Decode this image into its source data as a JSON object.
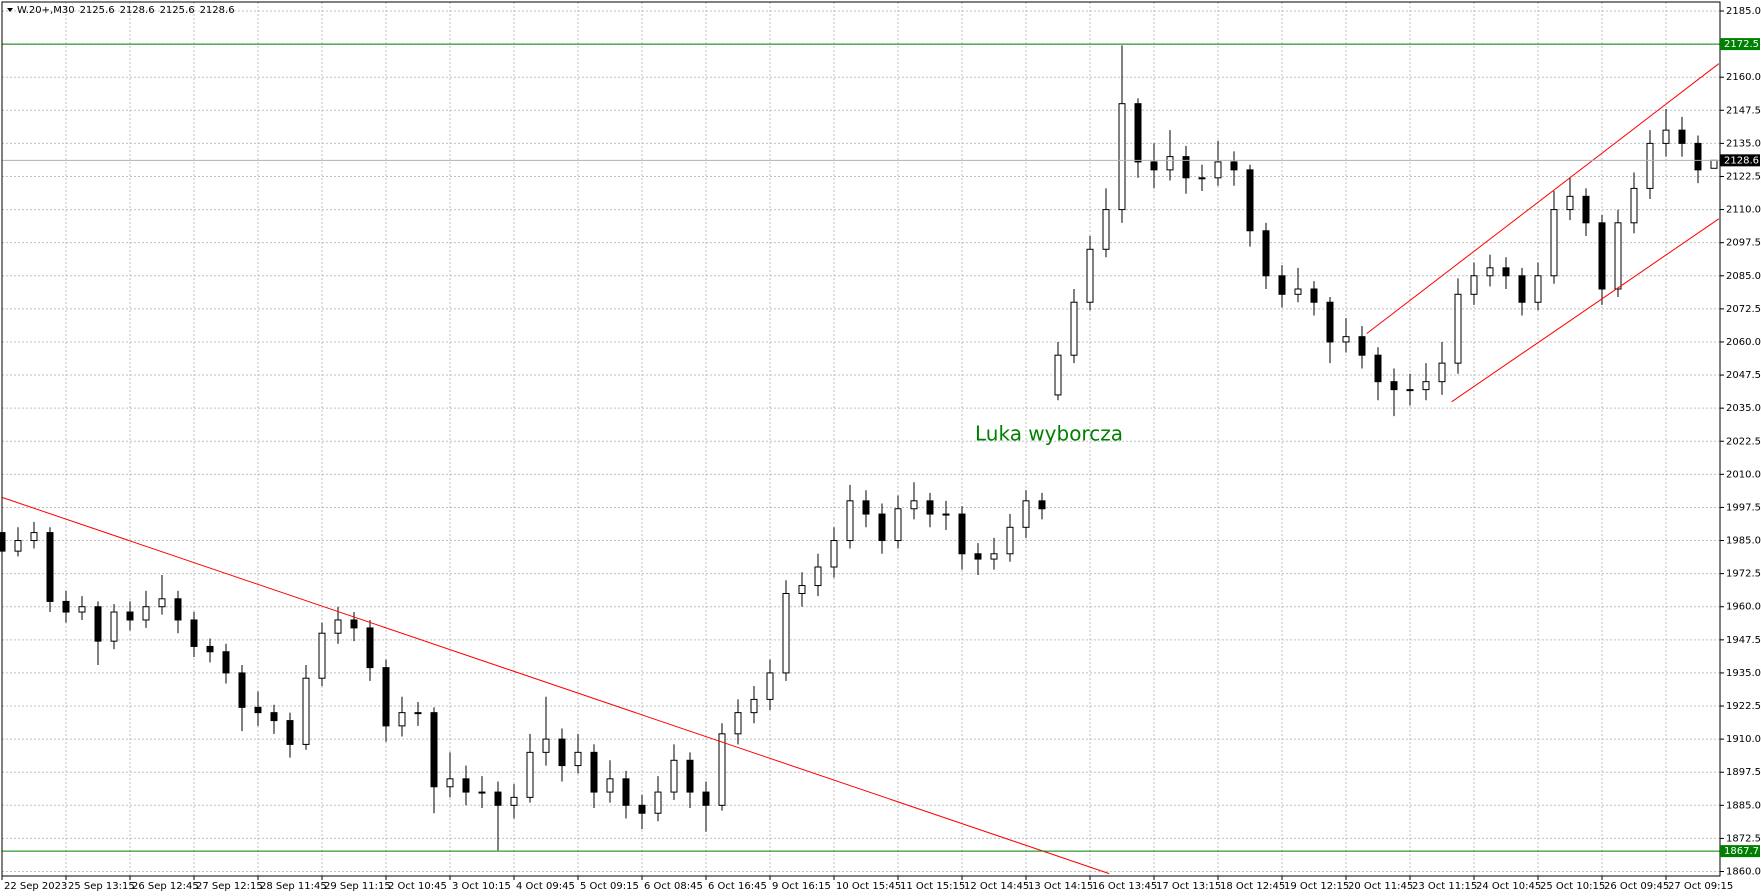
{
  "chart_data": {
    "type": "candlestick",
    "header": {
      "symbol": "W.20+,M30"
    },
    "annotation": {
      "text": "Luka wyborcza",
      "color": "#008000"
    },
    "bull_color": "#ffffff",
    "bear_color": "#000000",
    "grid": true,
    "ylim": [
      1858.3,
      2188.4
    ],
    "yticks": [
      {
        "value": 1860,
        "label": "1860.0"
      },
      1872.5,
      {
        "value": 1885,
        "label": "1885.0"
      },
      1897.5,
      {
        "value": 1910,
        "label": "1910.0"
      },
      1922.5,
      {
        "value": 1935,
        "label": "1935.0"
      },
      1947.5,
      {
        "value": 1960,
        "label": "1960.0"
      },
      1972.5,
      {
        "value": 1985,
        "label": "1985.0"
      },
      1997.5,
      {
        "value": 2010,
        "label": "2010.0"
      },
      2022.5,
      {
        "value": 2035,
        "label": "2035.0"
      },
      2047.5,
      {
        "value": 2060,
        "label": "2060.0"
      },
      2072.5,
      {
        "value": 2085,
        "label": "2085.0"
      },
      2097.5,
      {
        "value": 2110,
        "label": "2110.0"
      },
      2122.5,
      {
        "value": 2135,
        "label": "2135.0"
      },
      2147.5,
      {
        "value": 2160,
        "label": "2160.0"
      },
      2172.5,
      {
        "value": 2185,
        "label": "2185.0"
      }
    ],
    "hlines": [
      {
        "value": 2172.5,
        "color": "#008000"
      },
      {
        "value": 1867.7,
        "color": "#008000"
      }
    ],
    "trendlines": [
      {
        "color": "#ff0000",
        "points": [
          [
            0,
            2001.3
          ],
          [
            69.2,
            1859.2
          ]
        ]
      },
      {
        "color": "#ff0000",
        "points": [
          [
            90.6,
            2037.4
          ],
          [
            107.3,
            2106.5
          ]
        ]
      },
      {
        "color": "#ff0000",
        "points": [
          [
            85.3,
            2063.2
          ],
          [
            107.3,
            2165.1
          ]
        ]
      }
    ],
    "categories": [
      "22 Sep 2023",
      null,
      null,
      null,
      "25 Sep 13:15",
      null,
      null,
      null,
      "26 Sep 12:45",
      null,
      null,
      null,
      "27 Sep 12:15",
      null,
      null,
      null,
      "28 Sep 11:45",
      null,
      null,
      null,
      "29 Sep 11:15",
      null,
      null,
      null,
      "2 Oct 10:45",
      null,
      null,
      null,
      "3 Oct 10:15",
      null,
      null,
      null,
      "4 Oct 09:45",
      null,
      null,
      null,
      "5 Oct 09:15",
      null,
      null,
      null,
      "6 Oct 08:45",
      null,
      null,
      null,
      "6 Oct 16:45",
      null,
      null,
      null,
      "9 Oct 16:15",
      null,
      null,
      null,
      "10 Oct 15:45",
      null,
      null,
      null,
      "11 Oct 15:15",
      null,
      null,
      null,
      "12 Oct 14:45",
      null,
      null,
      null,
      "13 Oct 14:15",
      null,
      null,
      null,
      "16 Oct 13:45",
      null,
      null,
      null,
      "17 Oct 13:15",
      null,
      null,
      null,
      "18 Oct 12:45",
      null,
      null,
      null,
      "19 Oct 12:15",
      null,
      null,
      null,
      "20 Oct 11:45",
      null,
      null,
      null,
      "23 Oct 11:15",
      null,
      null,
      null,
      "24 Oct 10:45",
      null,
      null,
      null,
      "25 Oct 10:15",
      null,
      null,
      null,
      "26 Oct 09:45",
      null,
      null,
      null,
      "27 Oct 09:15",
      null,
      null,
      null
    ],
    "candles": [
      [
        1988,
        1992,
        1978,
        1981
      ],
      [
        1981,
        1990,
        1979,
        1985
      ],
      [
        1985,
        1992,
        1982,
        1988
      ],
      [
        1988,
        1990,
        1958,
        1962
      ],
      [
        1962,
        1966,
        1954,
        1958
      ],
      [
        1958,
        1964,
        1955,
        1960
      ],
      [
        1960,
        1962,
        1938,
        1947
      ],
      [
        1947,
        1961,
        1944,
        1958
      ],
      [
        1958,
        1962,
        1951,
        1955
      ],
      [
        1955,
        1966,
        1952,
        1960
      ],
      [
        1960,
        1972,
        1957,
        1963
      ],
      [
        1963,
        1966,
        1950,
        1955
      ],
      [
        1955,
        1958,
        1941,
        1945
      ],
      [
        1945,
        1948,
        1939,
        1943
      ],
      [
        1943,
        1946,
        1931,
        1935
      ],
      [
        1935,
        1938,
        1913,
        1922
      ],
      [
        1922,
        1928,
        1915,
        1920
      ],
      [
        1920,
        1923,
        1912,
        1917
      ],
      [
        1917,
        1920,
        1903,
        1908
      ],
      [
        1908,
        1938,
        1906,
        1933
      ],
      [
        1933,
        1954,
        1930,
        1950
      ],
      [
        1950,
        1960,
        1946,
        1955
      ],
      [
        1955,
        1958,
        1947,
        1952
      ],
      [
        1952,
        1955,
        1932,
        1937
      ],
      [
        1937,
        1940,
        1909,
        1915
      ],
      [
        1915,
        1926,
        1911,
        1920
      ],
      [
        1920,
        1924,
        1915,
        1920
      ],
      [
        1920,
        1922,
        1882,
        1892
      ],
      [
        1892,
        1905,
        1888,
        1895
      ],
      [
        1895,
        1900,
        1885,
        1890
      ],
      [
        1890,
        1896,
        1884,
        1890
      ],
      [
        1890,
        1894,
        1868,
        1885
      ],
      [
        1885,
        1893,
        1880,
        1888
      ],
      [
        1888,
        1912,
        1886,
        1905
      ],
      [
        1905,
        1926,
        1900,
        1910
      ],
      [
        1910,
        1914,
        1894,
        1900
      ],
      [
        1900,
        1912,
        1897,
        1905
      ],
      [
        1905,
        1908,
        1884,
        1890
      ],
      [
        1890,
        1902,
        1886,
        1895
      ],
      [
        1895,
        1898,
        1880,
        1885
      ],
      [
        1885,
        1889,
        1876,
        1882
      ],
      [
        1882,
        1896,
        1879,
        1890
      ],
      [
        1890,
        1908,
        1887,
        1902
      ],
      [
        1902,
        1905,
        1884,
        1890
      ],
      [
        1890,
        1894,
        1875,
        1885
      ],
      [
        1885,
        1916,
        1883,
        1912
      ],
      [
        1912,
        1925,
        1908,
        1920
      ],
      [
        1920,
        1930,
        1916,
        1925
      ],
      [
        1925,
        1940,
        1921,
        1935
      ],
      [
        1935,
        1970,
        1932,
        1965
      ],
      [
        1965,
        1973,
        1960,
        1968
      ],
      [
        1968,
        1980,
        1964,
        1975
      ],
      [
        1975,
        1990,
        1971,
        1985
      ],
      [
        1985,
        2006,
        1982,
        2000
      ],
      [
        2000,
        2004,
        1990,
        1995
      ],
      [
        1995,
        1999,
        1980,
        1985
      ],
      [
        1985,
        2002,
        1982,
        1997
      ],
      [
        1997,
        2007,
        1993,
        2000
      ],
      [
        2000,
        2003,
        1990,
        1995
      ],
      [
        1995,
        2000,
        1989,
        1995
      ],
      [
        1995,
        1998,
        1974,
        1980
      ],
      [
        1980,
        1984,
        1972,
        1978
      ],
      [
        1978,
        1986,
        1974,
        1980
      ],
      [
        1980,
        1995,
        1977,
        1990
      ],
      [
        1990,
        2004,
        1986,
        2000
      ],
      [
        2000,
        2003,
        1993,
        1997
      ],
      [
        2040,
        2060,
        2038,
        2055
      ],
      [
        2055,
        2080,
        2052,
        2075
      ],
      [
        2075,
        2100,
        2072,
        2095
      ],
      [
        2095,
        2118,
        2092,
        2110
      ],
      [
        2110,
        2172,
        2105,
        2150
      ],
      [
        2150,
        2152,
        2122,
        2128
      ],
      [
        2128,
        2135,
        2118,
        2125
      ],
      [
        2125,
        2140,
        2121,
        2130
      ],
      [
        2130,
        2134,
        2116,
        2122
      ],
      [
        2122,
        2127,
        2117,
        2122
      ],
      [
        2122,
        2136,
        2119,
        2128
      ],
      [
        2128,
        2132,
        2119,
        2125
      ],
      [
        2125,
        2127,
        2096,
        2102
      ],
      [
        2102,
        2105,
        2080,
        2085
      ],
      [
        2085,
        2089,
        2073,
        2078
      ],
      [
        2078,
        2088,
        2075,
        2080
      ],
      [
        2080,
        2083,
        2070,
        2075
      ],
      [
        2075,
        2077,
        2052,
        2060
      ],
      [
        2060,
        2069,
        2056,
        2062
      ],
      [
        2062,
        2066,
        2050,
        2055
      ],
      [
        2055,
        2058,
        2038,
        2045
      ],
      [
        2045,
        2050,
        2032,
        2042
      ],
      [
        2042,
        2048,
        2036,
        2042
      ],
      [
        2042,
        2052,
        2038,
        2045
      ],
      [
        2045,
        2060,
        2040,
        2052
      ],
      [
        2052,
        2084,
        2048,
        2078
      ],
      [
        2078,
        2090,
        2074,
        2085
      ],
      [
        2085,
        2093,
        2081,
        2088
      ],
      [
        2088,
        2092,
        2080,
        2085
      ],
      [
        2085,
        2088,
        2070,
        2075
      ],
      [
        2075,
        2090,
        2072,
        2085
      ],
      [
        2085,
        2117,
        2082,
        2110
      ],
      [
        2110,
        2122,
        2106,
        2115
      ],
      [
        2115,
        2118,
        2100,
        2105
      ],
      [
        2105,
        2108,
        2074,
        2080
      ],
      [
        2080,
        2110,
        2077,
        2105
      ],
      [
        2105,
        2124,
        2101,
        2118
      ],
      [
        2118,
        2140,
        2114,
        2135
      ],
      [
        2135,
        2148,
        2130,
        2140
      ],
      [
        2140,
        2145,
        2130,
        2135
      ],
      [
        2135,
        2138,
        2120,
        2125
      ],
      [
        2125.6,
        2128.6,
        2125.6,
        2128.6
      ]
    ]
  }
}
